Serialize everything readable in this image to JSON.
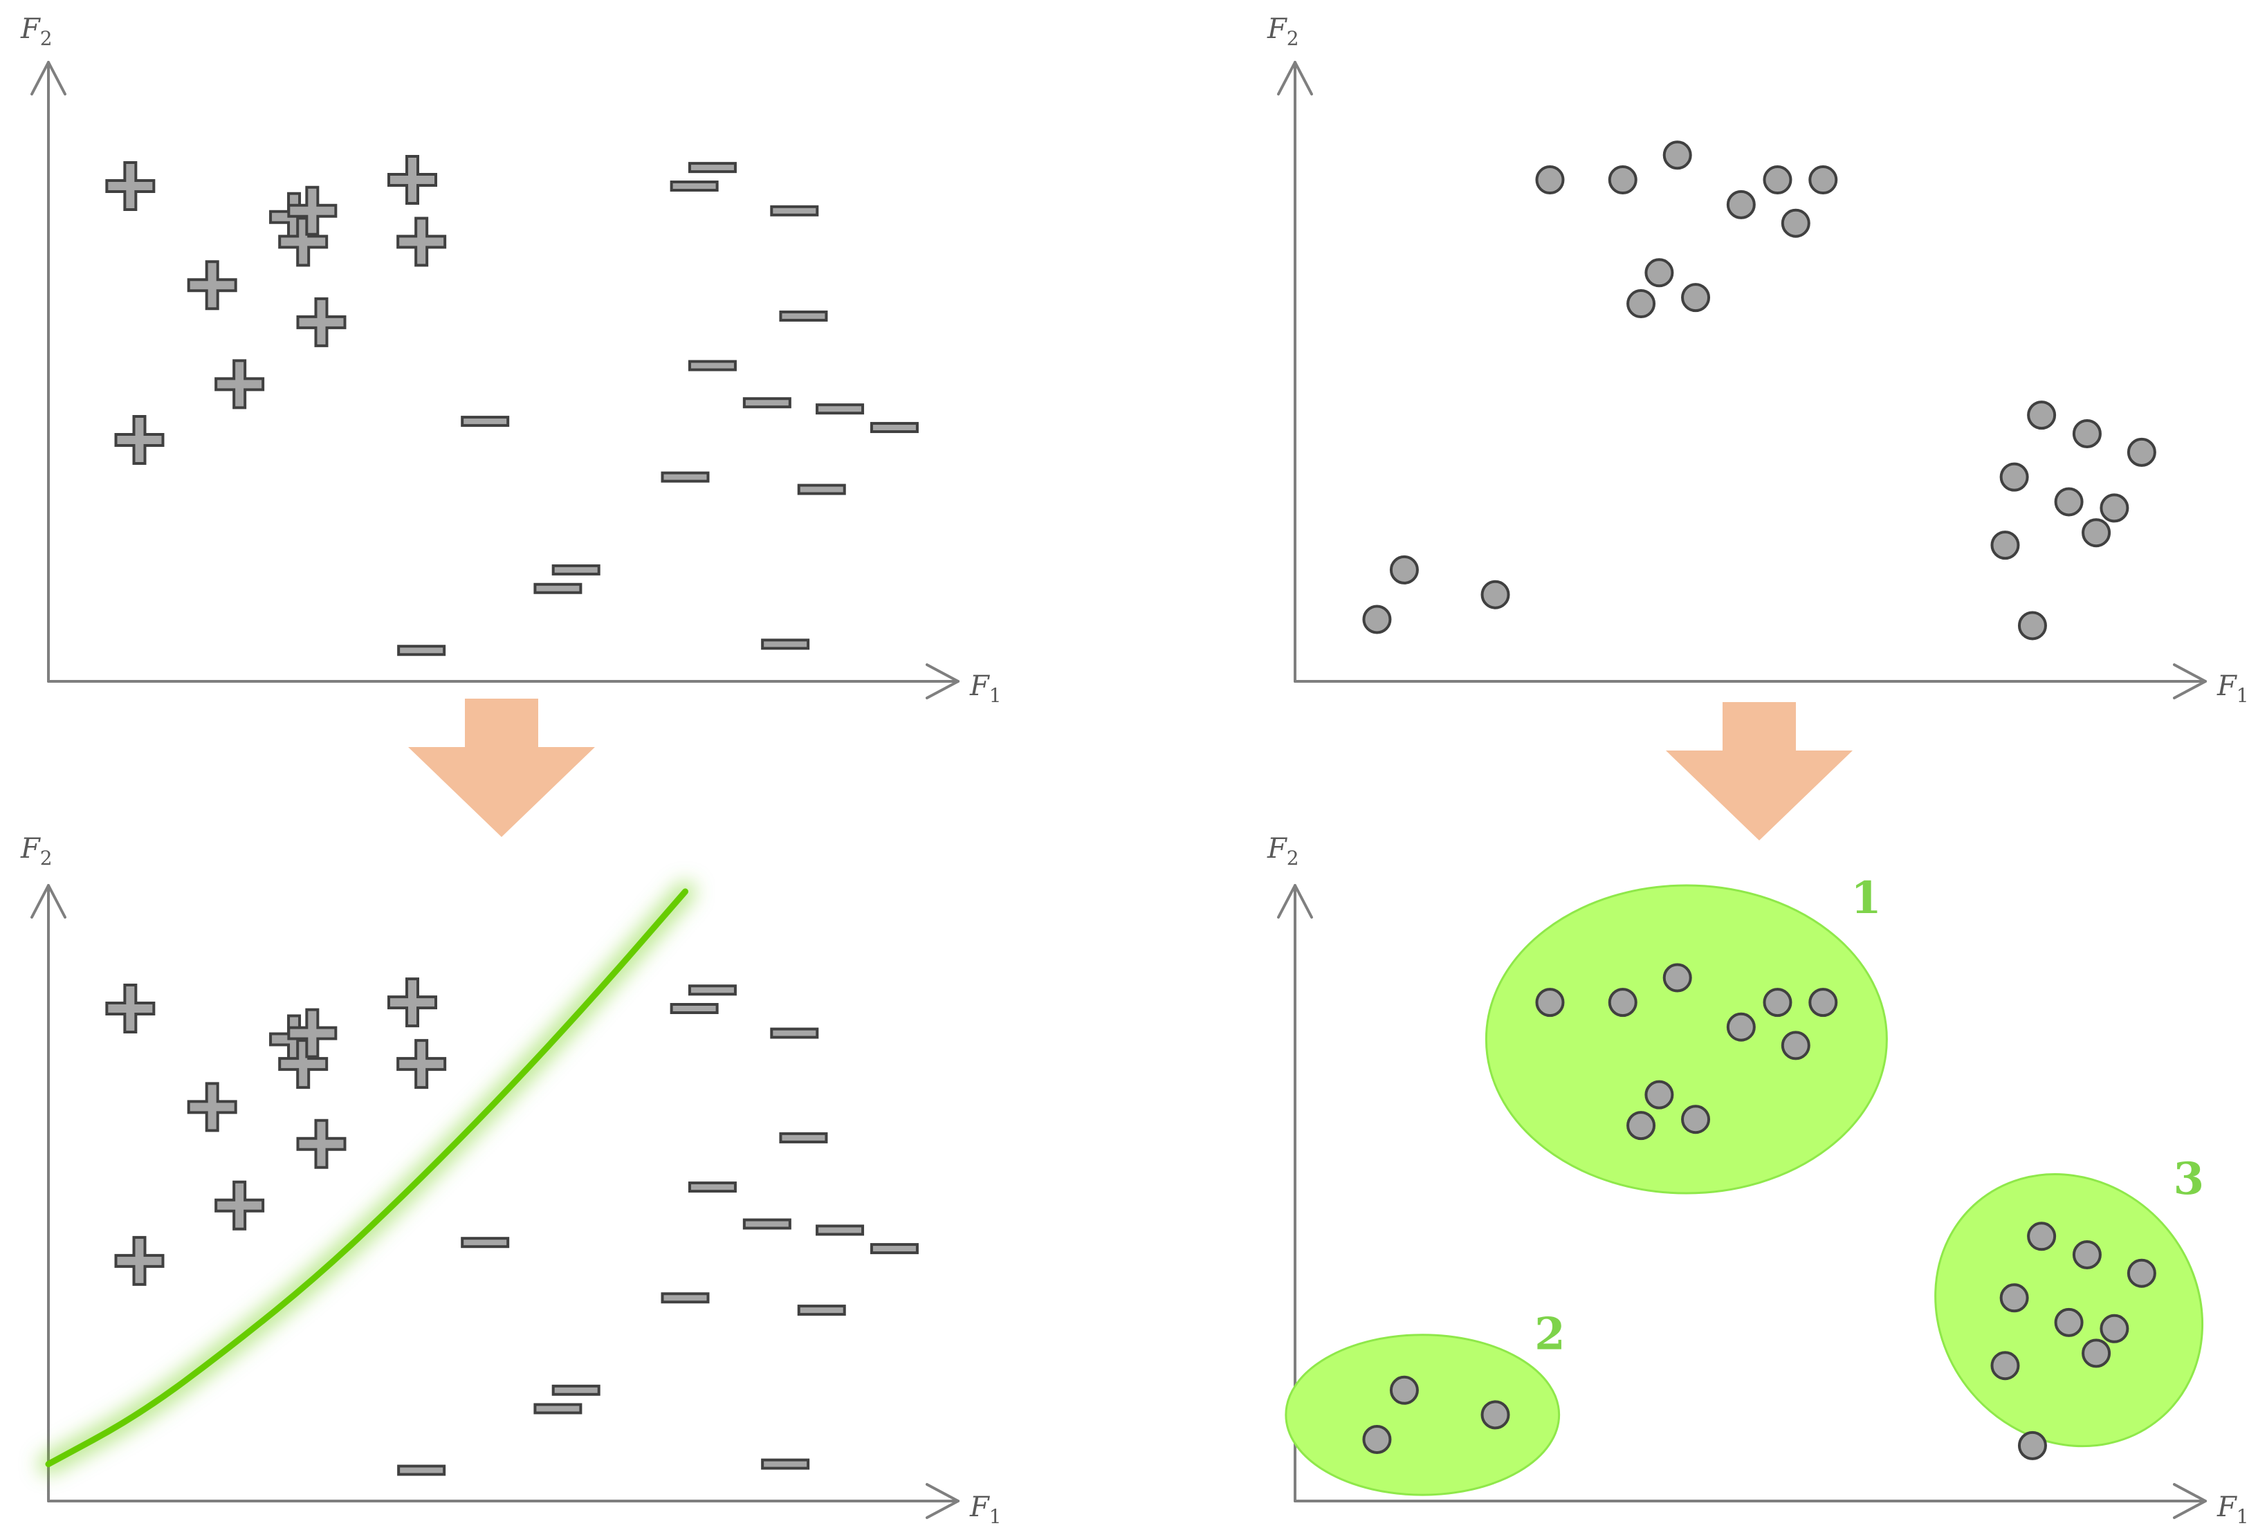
{
  "axes": {
    "x_label": "F",
    "x_sub": "1",
    "y_label": "F",
    "y_sub": "2"
  },
  "colors": {
    "marker_fill": "#a6a6a6",
    "marker_stroke": "#404040",
    "axis": "#7f7f7f",
    "arrow": "#f4bf9b",
    "boundary": "#66cc00",
    "cluster_fill": "#b8ff6e",
    "cluster_label": "#7ed34a"
  },
  "classification": {
    "plus_points": [
      [
        0.09,
        0.8
      ],
      [
        0.18,
        0.64
      ],
      [
        0.21,
        0.48
      ],
      [
        0.27,
        0.75
      ],
      [
        0.28,
        0.71
      ],
      [
        0.3,
        0.58
      ],
      [
        0.4,
        0.81
      ],
      [
        0.41,
        0.71
      ],
      [
        0.1,
        0.39
      ],
      [
        0.29,
        0.76
      ]
    ],
    "minus_points": [
      [
        0.41,
        0.05
      ],
      [
        0.48,
        0.42
      ],
      [
        0.56,
        0.15
      ],
      [
        0.58,
        0.18
      ],
      [
        0.7,
        0.33
      ],
      [
        0.71,
        0.8
      ],
      [
        0.73,
        0.83
      ],
      [
        0.73,
        0.51
      ],
      [
        0.79,
        0.45
      ],
      [
        0.81,
        0.06
      ],
      [
        0.82,
        0.76
      ],
      [
        0.83,
        0.59
      ],
      [
        0.85,
        0.31
      ],
      [
        0.87,
        0.44
      ],
      [
        0.93,
        0.41
      ]
    ],
    "boundary_curve": [
      [
        0,
        0.06
      ],
      [
        0.1,
        0.14
      ],
      [
        0.2,
        0.25
      ],
      [
        0.3,
        0.37
      ],
      [
        0.4,
        0.51
      ],
      [
        0.5,
        0.66
      ],
      [
        0.6,
        0.82
      ],
      [
        0.7,
        0.99
      ]
    ]
  },
  "clustering": {
    "points": [
      [
        0.09,
        0.1
      ],
      [
        0.12,
        0.18
      ],
      [
        0.22,
        0.14
      ],
      [
        0.28,
        0.81
      ],
      [
        0.36,
        0.81
      ],
      [
        0.38,
        0.61
      ],
      [
        0.4,
        0.66
      ],
      [
        0.42,
        0.85
      ],
      [
        0.44,
        0.62
      ],
      [
        0.49,
        0.77
      ],
      [
        0.53,
        0.81
      ],
      [
        0.55,
        0.74
      ],
      [
        0.58,
        0.81
      ],
      [
        0.78,
        0.22
      ],
      [
        0.79,
        0.33
      ],
      [
        0.81,
        0.09
      ],
      [
        0.82,
        0.43
      ],
      [
        0.85,
        0.29
      ],
      [
        0.87,
        0.4
      ],
      [
        0.88,
        0.24
      ],
      [
        0.9,
        0.28
      ],
      [
        0.93,
        0.37
      ]
    ],
    "clusters": [
      {
        "label": "1",
        "center": [
          0.43,
          0.75
        ],
        "radii": [
          0.22,
          0.25
        ]
      },
      {
        "label": "2",
        "center": [
          0.14,
          0.14
        ],
        "radii": [
          0.15,
          0.13
        ]
      },
      {
        "label": "3",
        "center": [
          0.85,
          0.31
        ],
        "radii": [
          0.14,
          0.23
        ]
      }
    ]
  }
}
